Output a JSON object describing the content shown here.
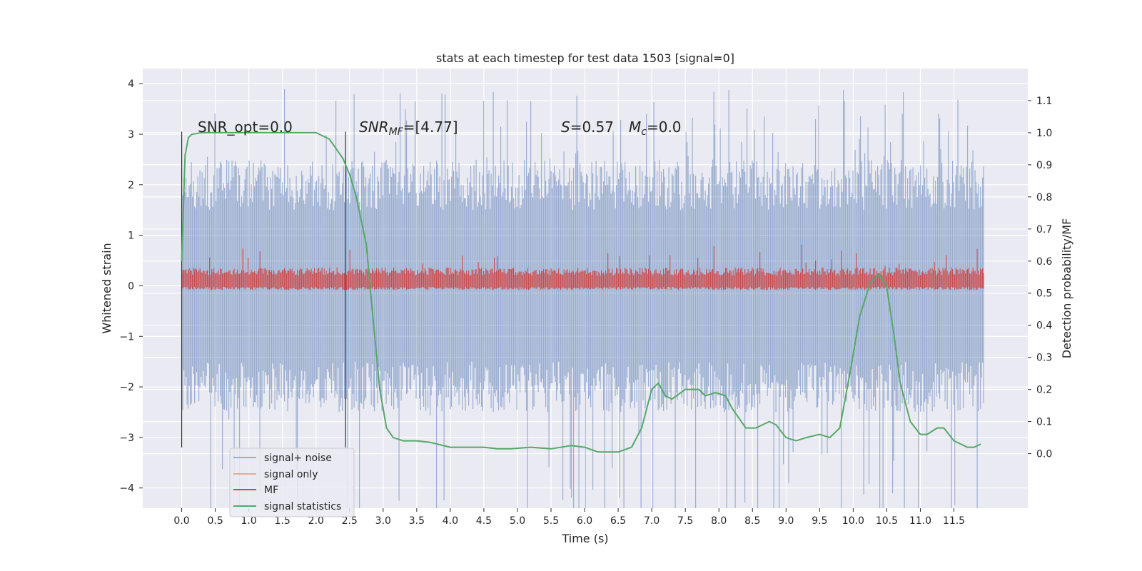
{
  "chart_data": {
    "type": "line",
    "title": "stats at each timestep for test data 1503 [signal=0]",
    "xlabel": "Time (s)",
    "ylabel": "Whitened strain",
    "y2label": "Detection probability/MF",
    "xlim": [
      -0.58,
      12.6
    ],
    "ylim": [
      -4.4,
      4.3
    ],
    "y2lim": [
      -0.17,
      1.2
    ],
    "xticks": [
      0.0,
      0.5,
      1.0,
      1.5,
      2.0,
      2.5,
      3.0,
      3.5,
      4.0,
      4.5,
      5.0,
      5.5,
      6.0,
      6.5,
      7.0,
      7.5,
      8.0,
      8.5,
      9.0,
      9.5,
      10.0,
      10.5,
      11.0,
      11.5
    ],
    "xtick_labels": [
      "0.0",
      "0.5",
      "1.0",
      "1.5",
      "2.0",
      "2.5",
      "3.0",
      "3.5",
      "4.0",
      "4.5",
      "5.0",
      "5.5",
      "6.0",
      "6.5",
      "7.0",
      "7.5",
      "8.0",
      "8.5",
      "9.0",
      "9.5",
      "10.0",
      "10.5",
      "11.0",
      "11.5"
    ],
    "yticks": [
      -4,
      -3,
      -2,
      -1,
      0,
      1,
      2,
      3,
      4
    ],
    "ytick_labels": [
      "−4",
      "−3",
      "−2",
      "−1",
      "0",
      "1",
      "2",
      "3",
      "4"
    ],
    "y2ticks": [
      0.0,
      0.1,
      0.2,
      0.3,
      0.4,
      0.5,
      0.6,
      0.7,
      0.8,
      0.9,
      1.0,
      1.1
    ],
    "y2tick_labels": [
      "0.0",
      "0.1",
      "0.2",
      "0.3",
      "0.4",
      "0.5",
      "0.6",
      "0.7",
      "0.8",
      "0.9",
      "1.0",
      "1.1"
    ],
    "grid": true,
    "legend_position": "lower-left",
    "annotations": {
      "snr_opt": "SNR_opt=0.0",
      "snr_mf_sym": "SNR",
      "snr_mf_sub": "MF",
      "snr_mf_val": "=[4.77]",
      "s_sym": "S",
      "s_val": "=0.57",
      "mc_sym": "M",
      "mc_sub": "c",
      "mc_val": "=0.0"
    },
    "vlines": [
      {
        "x": 0.0,
        "ymin": -3.2,
        "ymax": 3.05
      },
      {
        "x": 2.44,
        "ymin": -3.2,
        "ymax": 3.05
      }
    ],
    "noise_band": {
      "x_start": 0.0,
      "x_end": 11.95,
      "upper": 2.5,
      "lower": -2.5,
      "max_seen": 3.9,
      "min_seen": -4.1
    },
    "mf_band": {
      "x_start": 0.0,
      "x_end": 11.95,
      "upper_y2": 0.58,
      "lower_y2": 0.51,
      "max_seen_y2": 0.66
    },
    "series": [
      {
        "name": "signal+ noise",
        "color": "#4c72b0"
      },
      {
        "name": "signal only",
        "color": "#dd8452"
      },
      {
        "name": "MF",
        "color": "#c44e52"
      },
      {
        "name": "signal statistics",
        "color": "#55a868",
        "x": [
          0.0,
          0.05,
          0.1,
          0.15,
          0.3,
          1.0,
          2.0,
          2.2,
          2.4,
          2.5,
          2.6,
          2.75,
          2.85,
          2.95,
          3.05,
          3.15,
          3.3,
          3.5,
          3.7,
          4.0,
          4.3,
          4.5,
          4.7,
          4.9,
          5.2,
          5.5,
          5.8,
          6.0,
          6.2,
          6.5,
          6.7,
          6.85,
          7.0,
          7.1,
          7.2,
          7.3,
          7.5,
          7.7,
          7.8,
          7.95,
          8.1,
          8.2,
          8.4,
          8.55,
          8.75,
          8.85,
          9.0,
          9.15,
          9.3,
          9.5,
          9.65,
          9.8,
          9.95,
          10.1,
          10.25,
          10.38,
          10.5,
          10.6,
          10.7,
          10.85,
          11.0,
          11.1,
          11.25,
          11.35,
          11.5,
          11.6,
          11.7,
          11.8,
          11.9
        ],
        "y": [
          0.6,
          0.93,
          0.985,
          0.995,
          1.0,
          1.0,
          1.0,
          0.98,
          0.92,
          0.87,
          0.8,
          0.65,
          0.42,
          0.2,
          0.08,
          0.05,
          0.04,
          0.04,
          0.035,
          0.02,
          0.02,
          0.02,
          0.015,
          0.015,
          0.02,
          0.015,
          0.025,
          0.02,
          0.005,
          0.005,
          0.02,
          0.08,
          0.2,
          0.22,
          0.18,
          0.17,
          0.2,
          0.2,
          0.18,
          0.19,
          0.18,
          0.14,
          0.08,
          0.08,
          0.1,
          0.09,
          0.05,
          0.04,
          0.05,
          0.06,
          0.05,
          0.08,
          0.25,
          0.43,
          0.53,
          0.56,
          0.52,
          0.38,
          0.22,
          0.1,
          0.06,
          0.06,
          0.08,
          0.08,
          0.04,
          0.03,
          0.02,
          0.02,
          0.03
        ]
      }
    ]
  }
}
